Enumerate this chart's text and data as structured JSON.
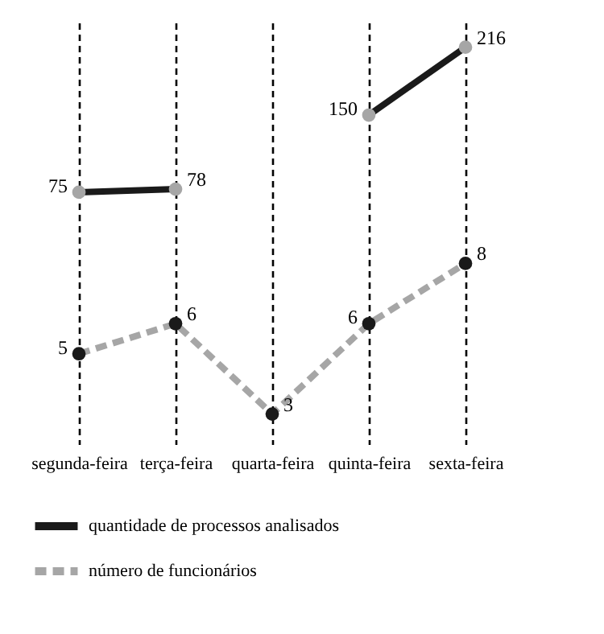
{
  "chart_data": {
    "type": "line",
    "categories": [
      "segunda-feira",
      "terça-feira",
      "quarta-feira",
      "quinta-feira",
      "sexta-feira"
    ],
    "series": [
      {
        "name": "quantidade de processos analisados",
        "color": "#1a1a1a",
        "line_style": "solid",
        "marker": "none",
        "values": [
          75,
          78,
          null,
          150,
          216
        ]
      },
      {
        "type": "scatter",
        "color": "#a6a6a6",
        "values": [
          75,
          78,
          null,
          150,
          216
        ],
        "value_labels": [
          "75",
          "78",
          null,
          "150",
          "216"
        ]
      },
      {
        "name": "número de funcionários",
        "color": "#a6a6a6",
        "line_style": "dashed",
        "marker": "none",
        "axis": "y2",
        "values": [
          5,
          6,
          3,
          6,
          8
        ]
      },
      {
        "type": "scatter",
        "color": "#1a1a1a",
        "axis": "y2",
        "values": [
          5,
          6,
          3,
          6,
          8
        ],
        "value_labels": [
          "5",
          "6",
          "3",
          "6",
          "8"
        ]
      }
    ],
    "ylim": [
      -170,
      240
    ],
    "y2lim": [
      2,
      16
    ],
    "grid": "x",
    "legend": "bottom",
    "marker": "circle",
    "tick_labels": "x"
  }
}
